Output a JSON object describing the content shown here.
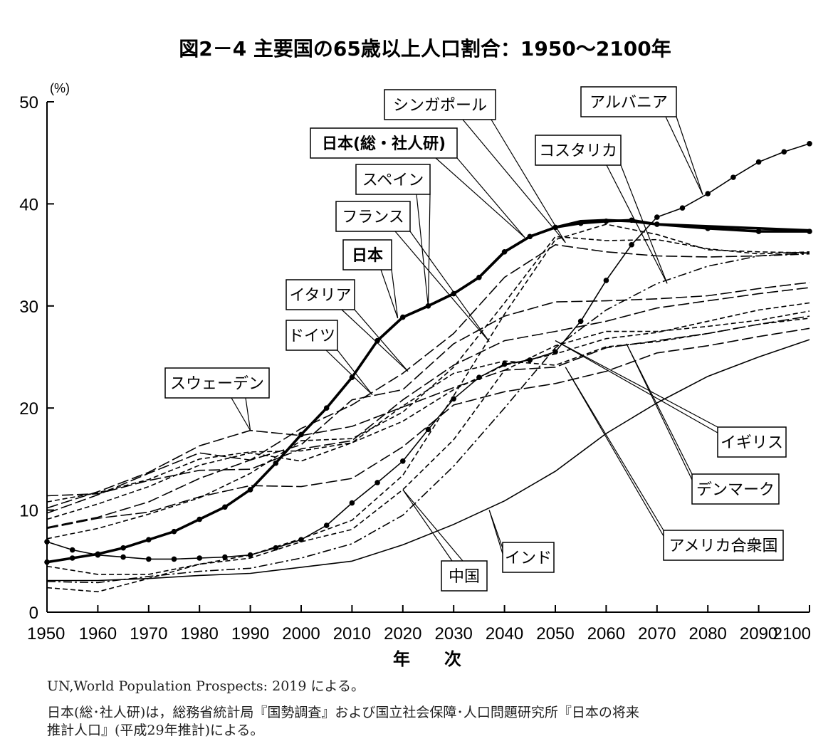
{
  "chart_data": {
    "type": "line",
    "title": "図2－4 主要国の65歳以上人口割合：1950～2100年",
    "ylabel": "(%)",
    "xlabel": "年　　次",
    "xlim": [
      1950,
      2100
    ],
    "ylim": [
      0,
      50
    ],
    "xticks": [
      "1950",
      "1960",
      "1970",
      "1980",
      "1990",
      "2000",
      "2010",
      "2020",
      "2030",
      "2040",
      "2050",
      "2060",
      "2070",
      "2080",
      "2090",
      "2100"
    ],
    "yticks": [
      "0",
      "10",
      "20",
      "30",
      "40",
      "50"
    ],
    "series": [
      {
        "name": "日本(総・社人研)",
        "style": "thick",
        "x": [
          2015,
          2020,
          2025,
          2030,
          2035,
          2040,
          2045,
          2050,
          2055,
          2060,
          2065,
          2070,
          2080,
          2090,
          2100
        ],
        "y": [
          26.6,
          28.9,
          30.0,
          31.2,
          32.8,
          35.3,
          36.8,
          37.7,
          38.3,
          38.4,
          38.3,
          38.0,
          37.8,
          37.6,
          37.4
        ]
      },
      {
        "name": "日本",
        "style": "thick-dots",
        "x": [
          1950,
          1955,
          1960,
          1965,
          1970,
          1975,
          1980,
          1985,
          1990,
          1995,
          2000,
          2005,
          2010,
          2015,
          2020,
          2025,
          2030,
          2035,
          2040,
          2045,
          2050,
          2055,
          2060,
          2065,
          2070,
          2080,
          2090,
          2100
        ],
        "y": [
          4.9,
          5.3,
          5.7,
          6.3,
          7.1,
          7.9,
          9.1,
          10.3,
          12.0,
          14.6,
          17.4,
          20.0,
          23.0,
          26.6,
          28.9,
          30.0,
          31.2,
          32.8,
          35.3,
          36.8,
          37.7,
          38.1,
          38.3,
          38.4,
          38.0,
          37.6,
          37.3,
          37.3
        ]
      },
      {
        "name": "アルバニア",
        "style": "solid-dots",
        "x": [
          1950,
          1955,
          1960,
          1965,
          1970,
          1975,
          1980,
          1985,
          1990,
          1995,
          2000,
          2005,
          2010,
          2015,
          2020,
          2025,
          2030,
          2035,
          2040,
          2045,
          2050,
          2055,
          2060,
          2065,
          2070,
          2075,
          2080,
          2085,
          2090,
          2095,
          2100
        ],
        "y": [
          6.9,
          6.1,
          5.6,
          5.4,
          5.2,
          5.2,
          5.3,
          5.4,
          5.6,
          6.3,
          7.1,
          8.5,
          10.7,
          12.7,
          14.8,
          17.9,
          20.9,
          23.0,
          24.3,
          24.7,
          25.5,
          28.5,
          32.5,
          36.0,
          38.7,
          39.6,
          41.0,
          42.6,
          44.1,
          45.1,
          45.9
        ]
      },
      {
        "name": "シンガポール",
        "style": "dash",
        "x": [
          1950,
          1960,
          1970,
          1980,
          1990,
          2000,
          2010,
          2020,
          2030,
          2040,
          2050,
          2060,
          2070,
          2080,
          2090,
          2100
        ],
        "y": [
          2.4,
          2.0,
          3.3,
          4.7,
          5.6,
          7.2,
          9.0,
          13.4,
          21.2,
          29.2,
          36.5,
          38.0,
          37.0,
          35.5,
          35.3,
          35.2
        ]
      },
      {
        "name": "コスタリカ",
        "style": "dash-dot",
        "x": [
          1950,
          1960,
          1970,
          1980,
          1990,
          2000,
          2010,
          2020,
          2030,
          2040,
          2050,
          2060,
          2070,
          2080,
          2090,
          2100
        ],
        "y": [
          3.0,
          2.9,
          3.5,
          4.0,
          4.3,
          5.3,
          6.7,
          9.5,
          14.3,
          20.0,
          25.9,
          29.6,
          32.2,
          33.9,
          34.9,
          35.1
        ]
      },
      {
        "name": "スペイン",
        "style": "dash",
        "x": [
          1950,
          1960,
          1970,
          1980,
          1990,
          2000,
          2010,
          2020,
          2030,
          2040,
          2050,
          2060,
          2070,
          2080,
          2090,
          2100
        ],
        "y": [
          7.2,
          8.2,
          9.6,
          11.2,
          13.6,
          16.8,
          17.0,
          19.6,
          24.0,
          30.3,
          36.8,
          36.4,
          36.5,
          35.6,
          35.1,
          35.3
        ]
      },
      {
        "name": "フランス",
        "style": "long-dash",
        "x": [
          1950,
          1960,
          1970,
          1980,
          1990,
          2000,
          2010,
          2020,
          2030,
          2040,
          2050,
          2060,
          2070,
          2080,
          2090,
          2100
        ],
        "y": [
          11.4,
          11.6,
          12.9,
          13.9,
          14.0,
          16.0,
          16.8,
          20.8,
          24.2,
          26.6,
          27.5,
          28.5,
          29.8,
          30.5,
          31.2,
          31.8
        ]
      },
      {
        "name": "イタリア",
        "style": "long-dash",
        "x": [
          1950,
          1960,
          1970,
          1980,
          1990,
          2000,
          2010,
          2020,
          2030,
          2040,
          2050,
          2060,
          2070,
          2080,
          2090,
          2100
        ],
        "y": [
          8.3,
          9.3,
          10.8,
          13.1,
          14.9,
          18.0,
          20.3,
          23.4,
          27.3,
          32.8,
          36.0,
          35.3,
          34.9,
          34.8,
          34.9,
          35.2
        ]
      },
      {
        "name": "ドイツ",
        "style": "long-dash",
        "x": [
          1950,
          1960,
          1970,
          1980,
          1990,
          2000,
          2010,
          2020,
          2030,
          2040,
          2050,
          2060,
          2070,
          2080,
          2090,
          2100
        ],
        "y": [
          9.7,
          11.5,
          13.6,
          15.6,
          14.9,
          16.4,
          20.8,
          21.8,
          26.3,
          29.0,
          30.4,
          30.5,
          30.7,
          31.0,
          31.7,
          32.3
        ]
      },
      {
        "name": "スウェーデン",
        "style": "long-dash",
        "x": [
          1950,
          1960,
          1970,
          1980,
          1990,
          2000,
          2010,
          2020,
          2030,
          2040,
          2050,
          2060,
          2070,
          2080,
          2090,
          2100
        ],
        "y": [
          10.2,
          11.8,
          13.7,
          16.3,
          17.8,
          17.3,
          18.2,
          20.1,
          22.0,
          23.7,
          24.0,
          25.9,
          26.6,
          27.3,
          28.2,
          29.0
        ]
      },
      {
        "name": "イギリス",
        "style": "dash",
        "x": [
          1950,
          1960,
          1970,
          1980,
          1990,
          2000,
          2010,
          2020,
          2030,
          2040,
          2050,
          2060,
          2070,
          2080,
          2090,
          2100
        ],
        "y": [
          10.8,
          11.7,
          13.0,
          15.0,
          15.7,
          15.8,
          16.6,
          18.7,
          21.8,
          24.2,
          25.3,
          26.8,
          27.4,
          28.5,
          29.6,
          30.3
        ]
      },
      {
        "name": "デンマーク",
        "style": "dash",
        "x": [
          1950,
          1960,
          1970,
          1980,
          1990,
          2000,
          2010,
          2020,
          2030,
          2040,
          2050,
          2060,
          2070,
          2080,
          2090,
          2100
        ],
        "y": [
          9.1,
          10.6,
          12.3,
          14.4,
          15.6,
          14.8,
          16.6,
          20.2,
          23.4,
          24.6,
          24.2,
          26.0,
          26.5,
          27.3,
          28.2,
          28.8
        ]
      },
      {
        "name": "アメリカ合衆国",
        "style": "long-dash",
        "x": [
          1950,
          1960,
          1970,
          1980,
          1990,
          2000,
          2010,
          2020,
          2030,
          2040,
          2050,
          2060,
          2070,
          2080,
          2090,
          2100
        ],
        "y": [
          8.2,
          9.2,
          9.8,
          11.3,
          12.4,
          12.3,
          13.1,
          16.2,
          20.3,
          21.6,
          22.4,
          23.6,
          25.4,
          26.1,
          27.0,
          27.8
        ]
      },
      {
        "name": "中国",
        "style": "dash",
        "x": [
          1950,
          1960,
          1970,
          1980,
          1990,
          2000,
          2010,
          2020,
          2030,
          2040,
          2050,
          2060,
          2070,
          2080,
          2090,
          2100
        ],
        "y": [
          4.5,
          3.7,
          3.7,
          4.7,
          5.3,
          6.9,
          8.1,
          12.0,
          16.9,
          23.7,
          26.1,
          27.5,
          27.5,
          28.0,
          28.6,
          29.5
        ]
      },
      {
        "name": "インド",
        "style": "solid",
        "x": [
          1950,
          1960,
          1970,
          1980,
          1990,
          2000,
          2010,
          2020,
          2030,
          2040,
          2050,
          2060,
          2070,
          2080,
          2090,
          2100
        ],
        "y": [
          3.1,
          3.1,
          3.3,
          3.6,
          3.8,
          4.4,
          5.0,
          6.6,
          8.6,
          10.9,
          13.8,
          17.5,
          20.5,
          23.1,
          25.0,
          26.7
        ]
      }
    ],
    "callouts": [
      {
        "label": "シンガポール",
        "bold": false
      },
      {
        "label": "アルバニア",
        "bold": false
      },
      {
        "label": "日本(総・社人研)",
        "bold": true
      },
      {
        "label": "コスタリカ",
        "bold": false
      },
      {
        "label": "スペイン",
        "bold": false
      },
      {
        "label": "フランス",
        "bold": false
      },
      {
        "label": "日本",
        "bold": true
      },
      {
        "label": "イタリア",
        "bold": false
      },
      {
        "label": "ドイツ",
        "bold": false
      },
      {
        "label": "スウェーデン",
        "bold": false
      },
      {
        "label": "イギリス",
        "bold": false
      },
      {
        "label": "デンマーク",
        "bold": false
      },
      {
        "label": "アメリカ合衆国",
        "bold": false
      },
      {
        "label": "中国",
        "bold": false
      },
      {
        "label": "インド",
        "bold": false
      }
    ]
  },
  "notes": {
    "line1": "UN,World Population Prospects: 2019 による。",
    "line2": "日本(総･社人研)は，総務省統計局『国勢調査』および国立社会保障･人口問題研究所『日本の将来",
    "line3": "推計人口』(平成29年推計)による。"
  }
}
